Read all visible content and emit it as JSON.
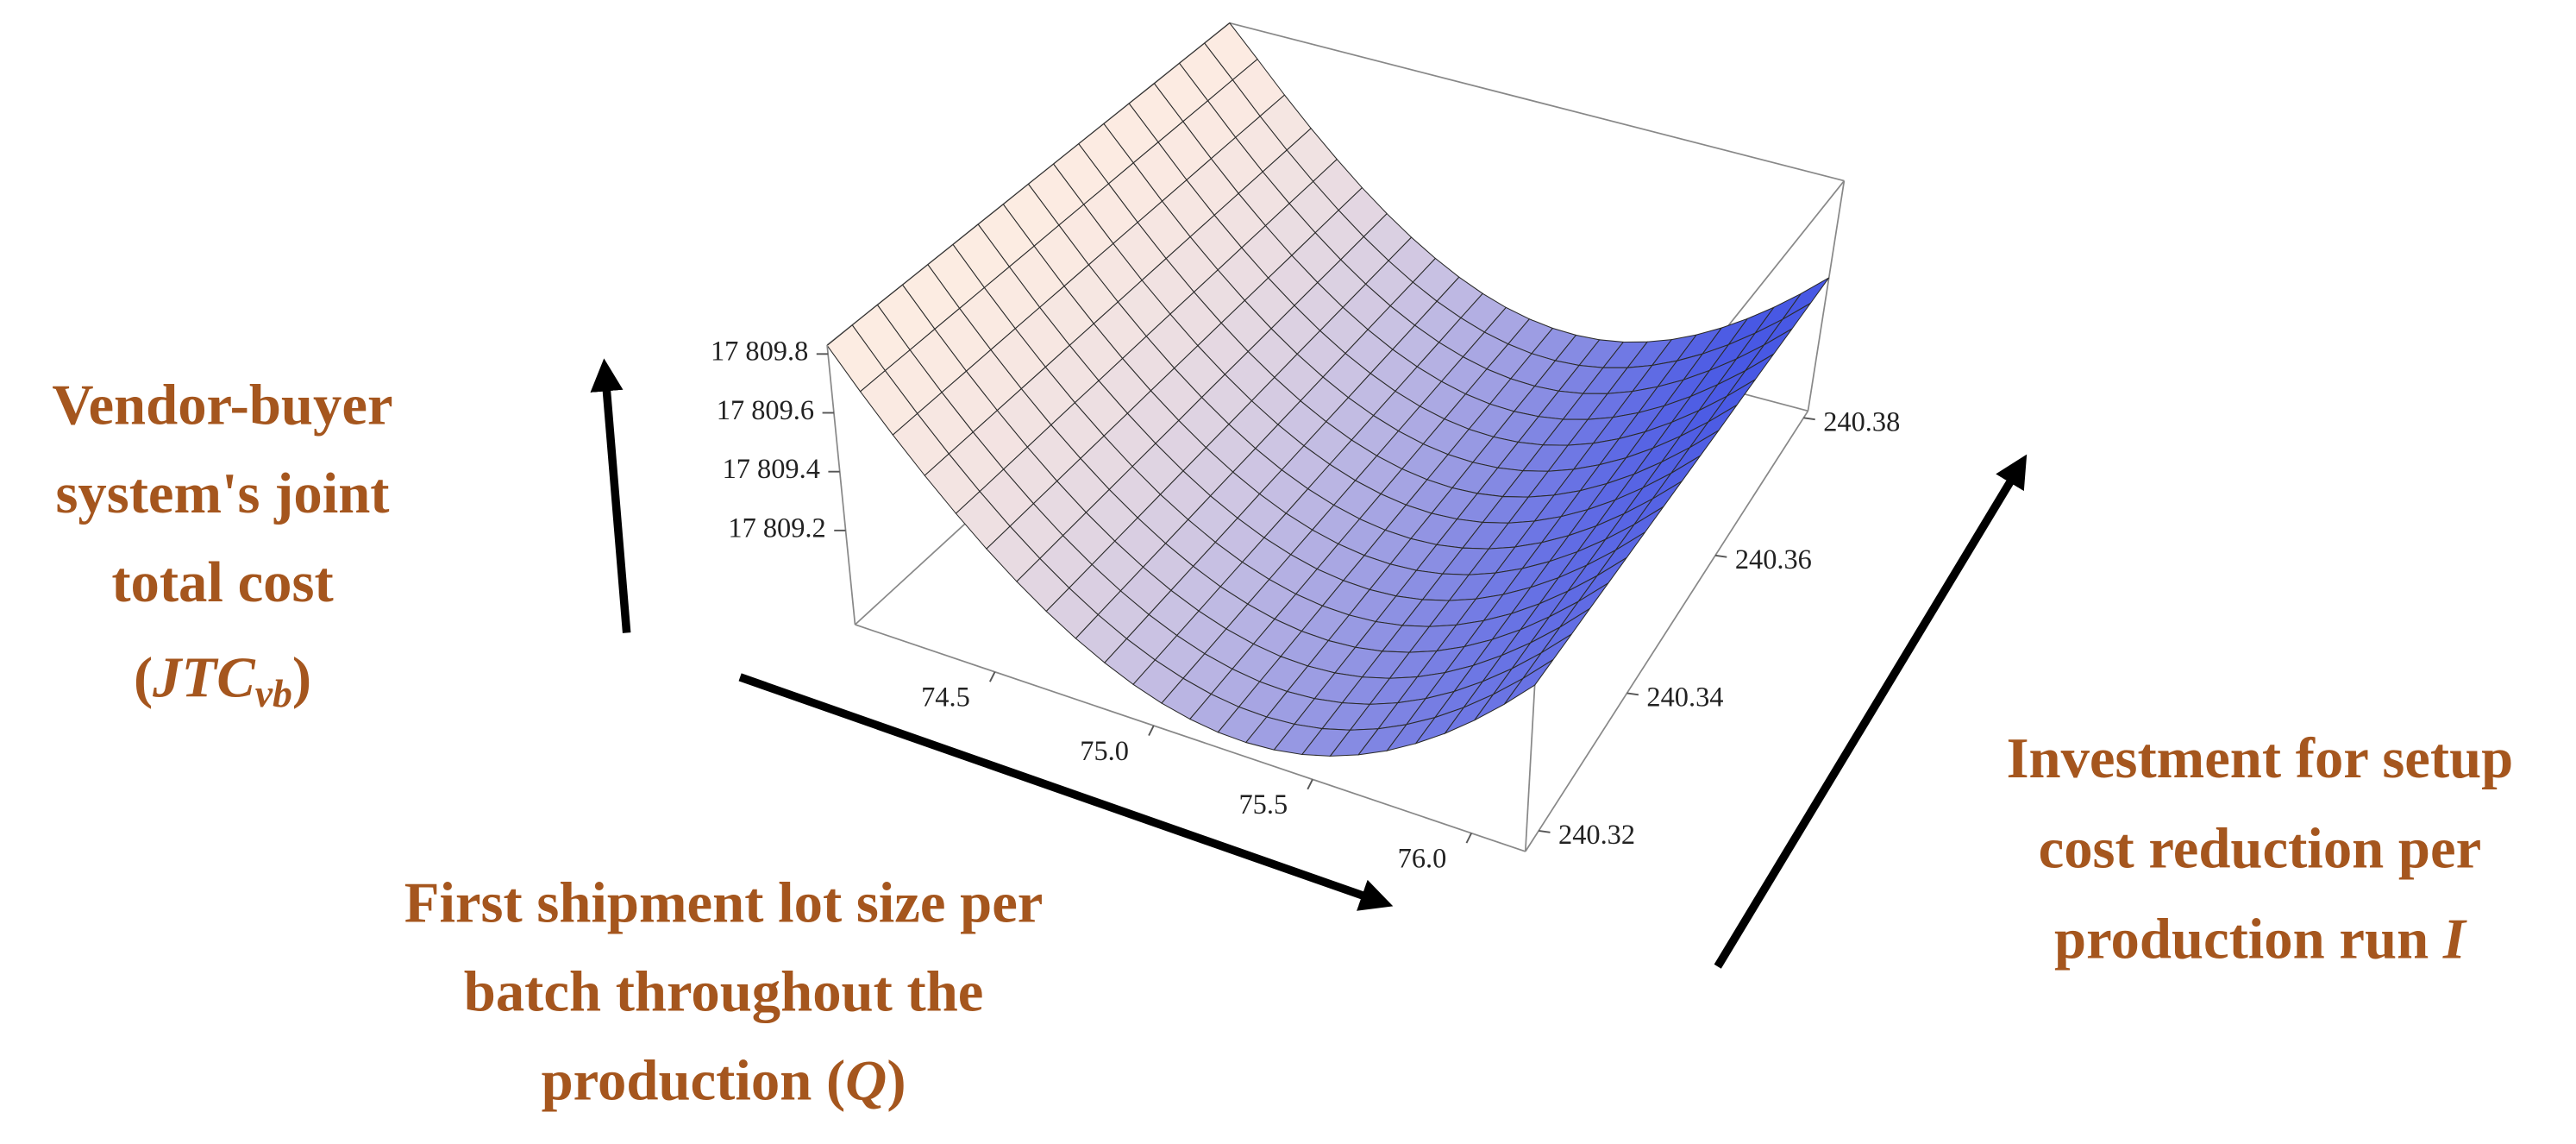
{
  "chart_data": {
    "type": "surface",
    "x_label": {
      "lines": [
        "First shipment lot size per",
        "batch throughout the",
        "production "
      ],
      "symbol": [
        "(",
        "Q",
        ")"
      ]
    },
    "y_label": {
      "lines": [
        "Investment for setup",
        "cost reduction per",
        "production run "
      ],
      "symbol": [
        "I"
      ]
    },
    "z_label": {
      "lines": [
        "Vendor-buyer",
        "system's joint",
        "total cost"
      ],
      "symbol": [
        "(",
        "JTC",
        "vb",
        ")"
      ]
    },
    "xlim": [
      74.06,
      76.17
    ],
    "xticks": [
      74.5,
      {
        "value": 75,
        "label": "75.0"
      },
      75.5,
      {
        "value": 76,
        "label": "76.0"
      }
    ],
    "ylim": [
      240.317,
      240.381
    ],
    "yticks": [
      240.32,
      240.34,
      240.36,
      240.38
    ],
    "zlim": [
      17808.88,
      17809.83
    ],
    "zticks": [
      {
        "value": 17809.2,
        "label": "17 809.2"
      },
      {
        "value": 17809.4,
        "label": "17 809.4"
      },
      {
        "value": 17809.6,
        "label": "17 809.6"
      },
      {
        "value": 17809.8,
        "label": "17 809.8"
      }
    ],
    "label_color": "#a5561e"
  }
}
